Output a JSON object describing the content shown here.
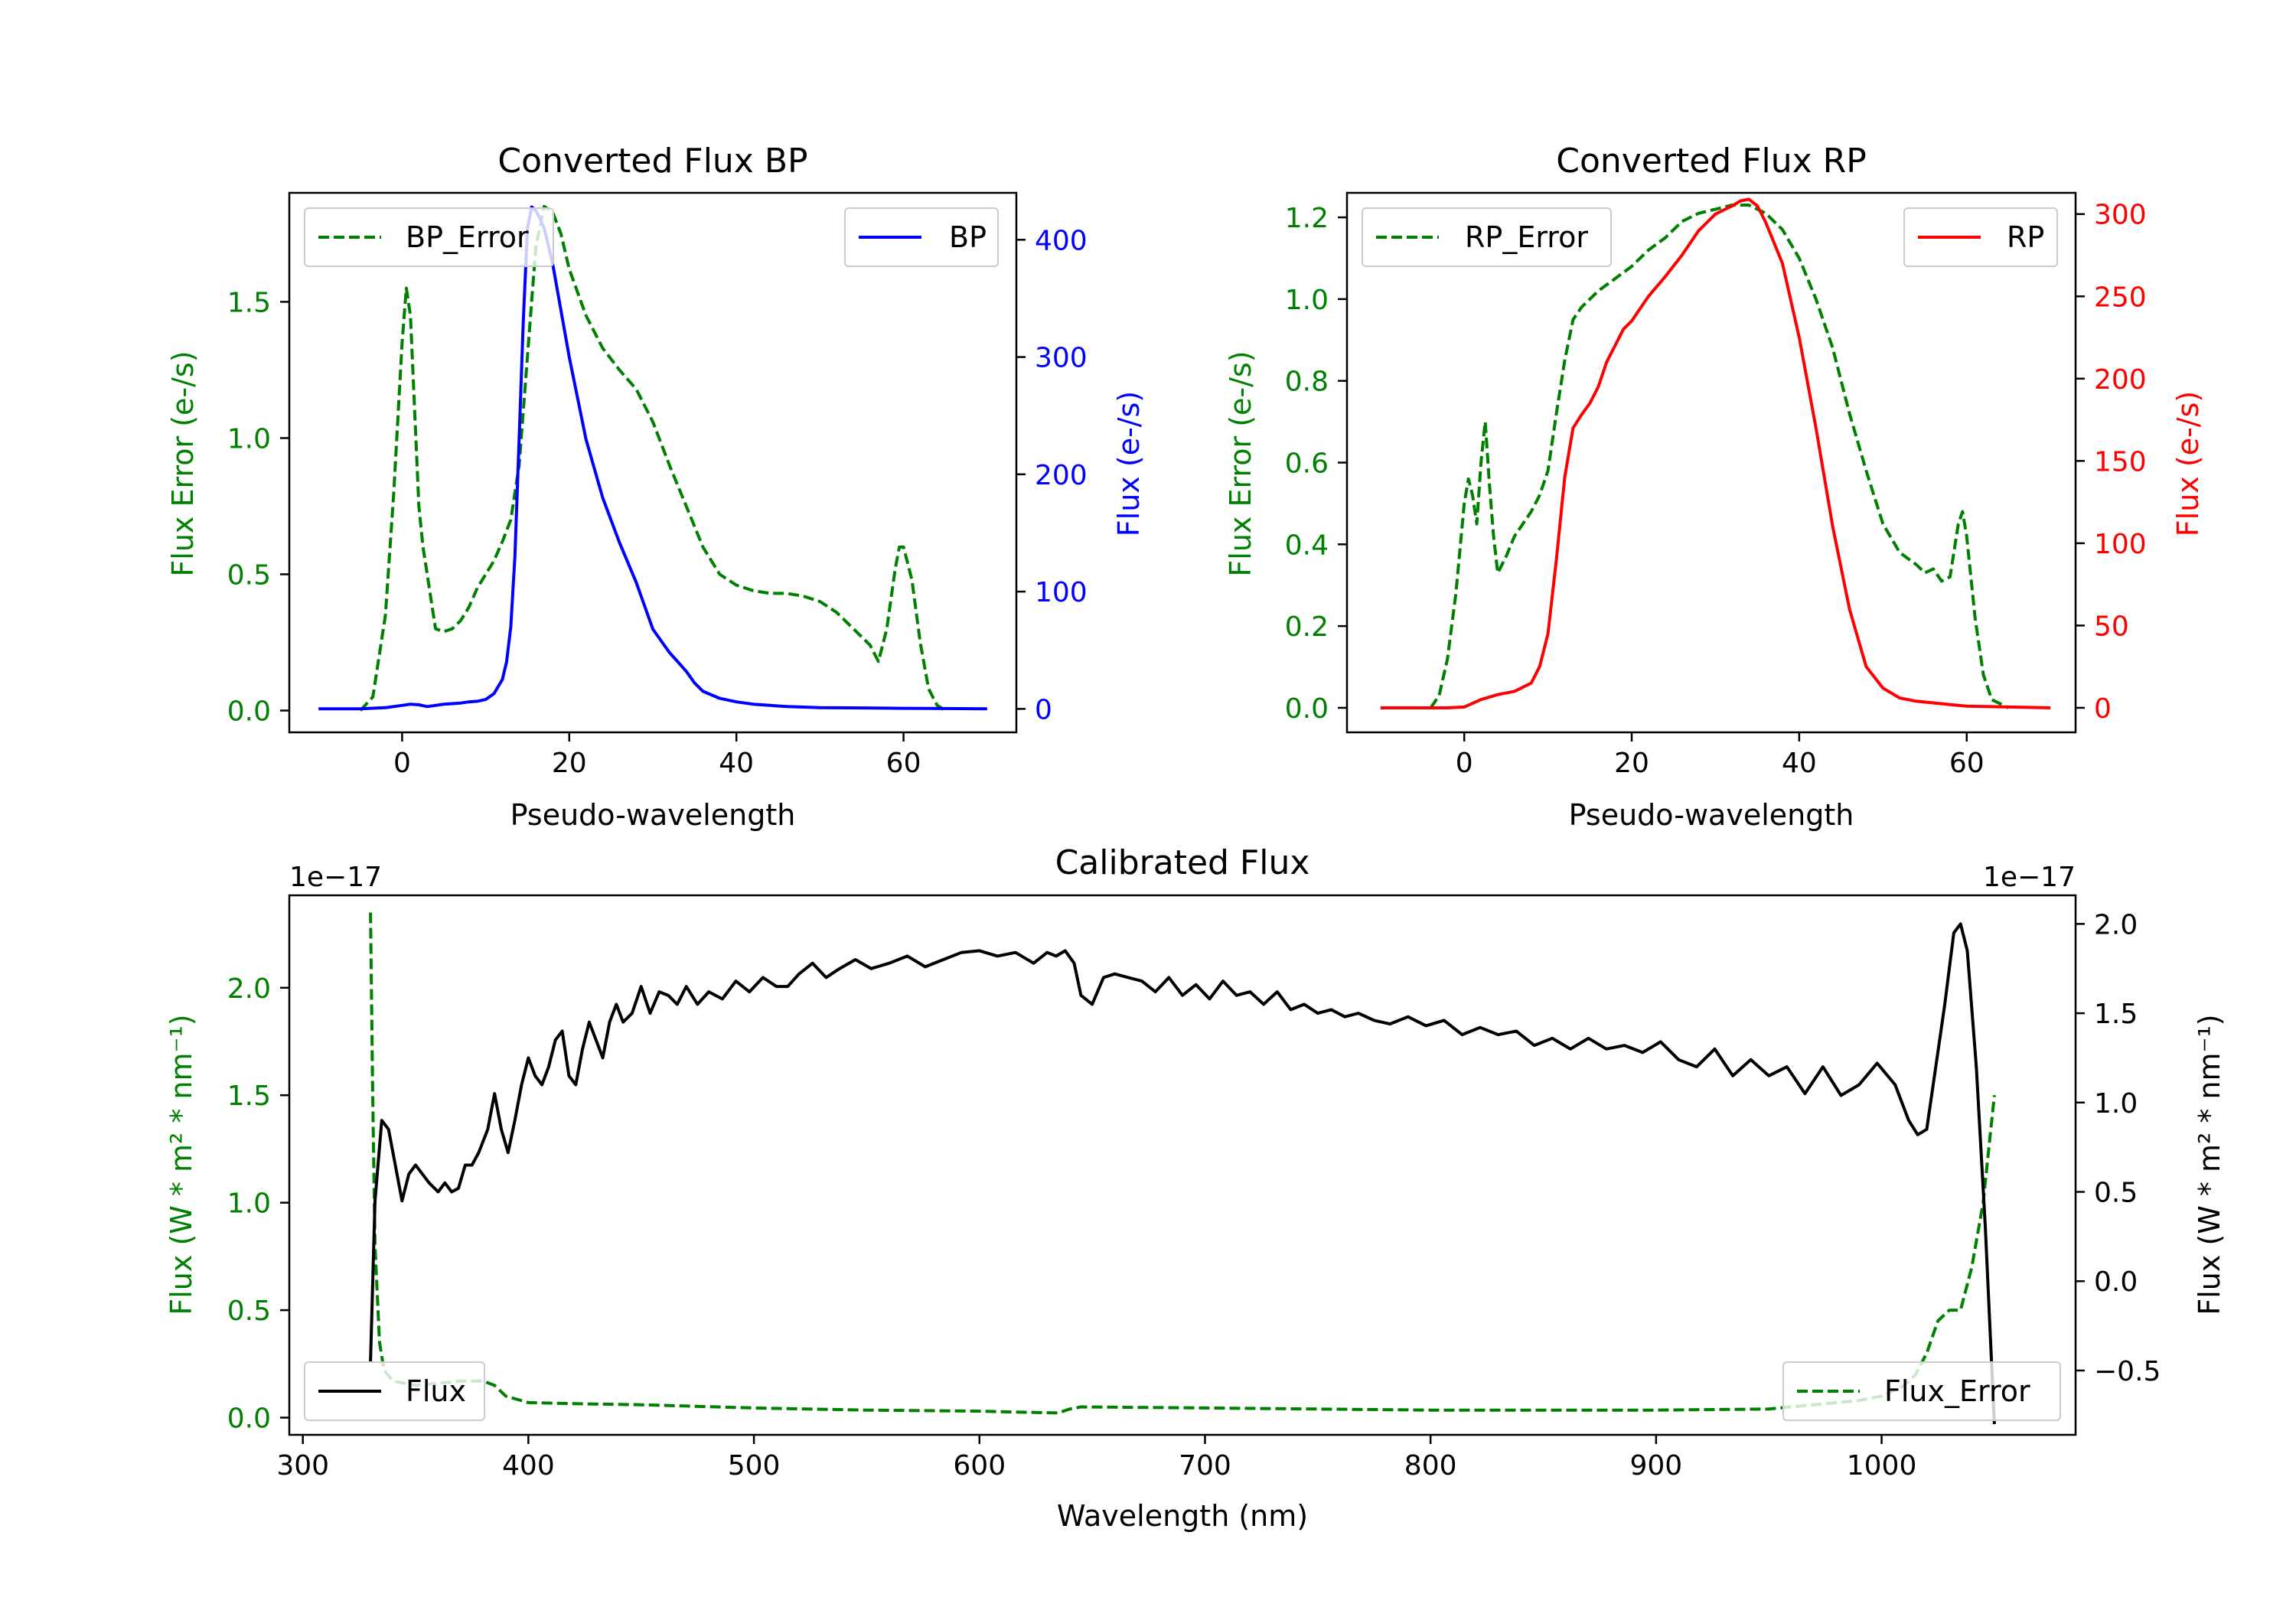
{
  "colors": {
    "green": "#008000",
    "blue": "#0000ff",
    "red": "#ff0000",
    "black": "#000000"
  },
  "chart_data": [
    {
      "id": "bp",
      "type": "line",
      "title": "Converted Flux BP",
      "xlabel": "Pseudo-wavelength",
      "ylabel_left": "Flux Error (e-/s)",
      "ylabel_right": "Flux (e-/s)",
      "xlim": [
        -13.5,
        73.5
      ],
      "ylim_left": [
        -0.08,
        1.9
      ],
      "ylim_right": [
        -20,
        440
      ],
      "xticks": [
        "0",
        "20",
        "40",
        "60"
      ],
      "yticks_left": [
        "0.0",
        "0.5",
        "1.0",
        "1.5"
      ],
      "yticks_right": [
        "0",
        "100",
        "200",
        "300",
        "400"
      ],
      "legend_left": "BP_Error",
      "legend_right": "BP",
      "series": [
        {
          "name": "BP_Error",
          "axis": "left",
          "style": "dashed",
          "color": "green",
          "x": [
            -5,
            -3.5,
            -2,
            -1,
            0,
            0.5,
            1,
            1.5,
            2,
            2.5,
            3,
            3.5,
            4,
            5,
            6,
            7,
            8,
            9,
            10,
            11,
            12,
            13,
            14,
            15,
            16,
            17,
            18,
            19,
            20,
            22,
            24,
            26,
            28,
            30,
            32,
            34,
            36,
            38,
            40,
            42,
            44,
            46,
            48,
            50,
            52,
            54,
            56,
            57,
            58,
            59,
            59.5,
            60,
            61,
            62,
            63,
            64,
            65
          ],
          "y": [
            0,
            0.05,
            0.35,
            0.8,
            1.35,
            1.55,
            1.45,
            1.1,
            0.75,
            0.6,
            0.5,
            0.4,
            0.3,
            0.29,
            0.3,
            0.33,
            0.38,
            0.45,
            0.5,
            0.55,
            0.62,
            0.7,
            0.9,
            1.3,
            1.7,
            1.85,
            1.83,
            1.75,
            1.62,
            1.45,
            1.33,
            1.25,
            1.18,
            1.06,
            0.9,
            0.75,
            0.6,
            0.5,
            0.46,
            0.44,
            0.43,
            0.43,
            0.42,
            0.4,
            0.36,
            0.3,
            0.24,
            0.18,
            0.3,
            0.52,
            0.6,
            0.6,
            0.48,
            0.25,
            0.08,
            0.02,
            0
          ]
        },
        {
          "name": "BP",
          "axis": "right",
          "style": "solid",
          "color": "blue",
          "x": [
            -10,
            -5,
            -2,
            0,
            1,
            2,
            3,
            4,
            5,
            6,
            7,
            8,
            9,
            10,
            11,
            12,
            12.5,
            13,
            13.5,
            14,
            14.5,
            15,
            15.5,
            16,
            16.5,
            17,
            18,
            19,
            20,
            22,
            24,
            26,
            28,
            30,
            31,
            32,
            33,
            34,
            35,
            36,
            38,
            40,
            42,
            44,
            46,
            48,
            50,
            55,
            60,
            65,
            70
          ],
          "y": [
            0,
            0,
            1,
            3,
            4,
            3.5,
            2,
            3,
            4,
            4.5,
            5,
            6,
            6.5,
            8,
            13,
            25,
            40,
            70,
            130,
            230,
            330,
            410,
            428,
            425,
            418,
            410,
            380,
            340,
            300,
            230,
            180,
            142,
            108,
            68,
            58,
            48,
            40,
            32,
            22,
            15,
            9,
            6,
            4,
            3,
            2,
            1.5,
            1,
            0.8,
            0.5,
            0.3,
            0
          ]
        }
      ]
    },
    {
      "id": "rp",
      "type": "line",
      "title": "Converted Flux RP",
      "xlabel": "Pseudo-wavelength",
      "ylabel_left": "Flux Error (e-/s)",
      "ylabel_right": "Flux (e-/s)",
      "xlim": [
        -14,
        73
      ],
      "ylim_left": [
        -0.06,
        1.26
      ],
      "ylim_right": [
        -14.9,
        312.9
      ],
      "xticks": [
        "0",
        "20",
        "40",
        "60"
      ],
      "yticks_left": [
        "0.0",
        "0.2",
        "0.4",
        "0.6",
        "0.8",
        "1.0",
        "1.2"
      ],
      "yticks_right": [
        "0",
        "50",
        "100",
        "150",
        "200",
        "250",
        "300"
      ],
      "legend_left": "RP_Error",
      "legend_right": "RP",
      "series": [
        {
          "name": "RP_Error",
          "axis": "left",
          "style": "dashed",
          "color": "green",
          "x": [
            -4,
            -3,
            -2,
            -1,
            0,
            0.5,
            1,
            1.5,
            2,
            2.5,
            3,
            3.5,
            4,
            5,
            6,
            7,
            8,
            9,
            10,
            11,
            12,
            13,
            14,
            16,
            18,
            20,
            22,
            24,
            26,
            28,
            30,
            32,
            34,
            36,
            38,
            40,
            42,
            44,
            46,
            48,
            50,
            52,
            54,
            55,
            56,
            57,
            58,
            59,
            59.5,
            60,
            61,
            62,
            63,
            65
          ],
          "y": [
            0,
            0.03,
            0.12,
            0.28,
            0.5,
            0.56,
            0.52,
            0.45,
            0.6,
            0.7,
            0.55,
            0.42,
            0.33,
            0.37,
            0.42,
            0.45,
            0.48,
            0.52,
            0.58,
            0.72,
            0.85,
            0.95,
            0.98,
            1.02,
            1.05,
            1.08,
            1.12,
            1.15,
            1.19,
            1.21,
            1.22,
            1.23,
            1.23,
            1.21,
            1.17,
            1.1,
            1.0,
            0.88,
            0.72,
            0.58,
            0.45,
            0.38,
            0.35,
            0.33,
            0.34,
            0.31,
            0.32,
            0.45,
            0.48,
            0.42,
            0.22,
            0.08,
            0.02,
            0
          ]
        },
        {
          "name": "RP",
          "axis": "right",
          "style": "solid",
          "color": "red",
          "x": [
            -10,
            -5,
            -2,
            0,
            2,
            4,
            6,
            8,
            9,
            10,
            11,
            12,
            13,
            14,
            15,
            16,
            17,
            18,
            19,
            20,
            22,
            24,
            26,
            28,
            30,
            32,
            33,
            34,
            35,
            36,
            38,
            40,
            42,
            44,
            46,
            48,
            50,
            52,
            54,
            56,
            58,
            60,
            65,
            70
          ],
          "y": [
            0,
            0,
            0,
            0.5,
            5,
            8,
            10,
            15,
            25,
            45,
            90,
            140,
            170,
            178,
            185,
            195,
            210,
            220,
            230,
            235,
            250,
            262,
            275,
            290,
            300,
            305,
            308,
            309,
            305,
            295,
            270,
            225,
            170,
            110,
            60,
            25,
            12,
            6,
            4,
            3,
            2,
            1,
            0.5,
            0
          ]
        }
      ]
    },
    {
      "id": "cal",
      "type": "line",
      "title": "Calibrated Flux",
      "xlabel": "Wavelength (nm)",
      "ylabel_left": "Flux (W * m² * nm⁻¹)",
      "ylabel_right": "Flux (W * m² * nm⁻¹)",
      "offset_left": "1e−17",
      "offset_right": "1e−17",
      "xlim": [
        294,
        1086
      ],
      "ylim_left": [
        -0.08,
        2.43
      ],
      "ylim_right": [
        -0.86,
        2.16
      ],
      "xticks": [
        "300",
        "400",
        "500",
        "600",
        "700",
        "800",
        "900",
        "1000"
      ],
      "yticks_left": [
        "0.0",
        "0.5",
        "1.0",
        "1.5",
        "2.0"
      ],
      "yticks_right": [
        "−0.5",
        "0.0",
        "0.5",
        "1.0",
        "1.5",
        "2.0"
      ],
      "legend_left": "Flux",
      "legend_right": "Flux_Error",
      "series": [
        {
          "name": "Flux_Error",
          "axis": "left",
          "style": "dashed",
          "color": "green",
          "x": [
            330,
            331,
            332,
            334,
            336,
            340,
            350,
            360,
            370,
            380,
            385,
            390,
            400,
            420,
            450,
            500,
            550,
            600,
            620,
            635,
            640,
            645,
            700,
            800,
            900,
            950,
            990,
            1000,
            1010,
            1015,
            1020,
            1025,
            1030,
            1035,
            1040,
            1045,
            1050
          ],
          "y": [
            2.35,
            1.5,
            0.8,
            0.35,
            0.22,
            0.17,
            0.15,
            0.16,
            0.17,
            0.17,
            0.15,
            0.1,
            0.07,
            0.065,
            0.06,
            0.045,
            0.035,
            0.03,
            0.025,
            0.022,
            0.04,
            0.05,
            0.045,
            0.035,
            0.035,
            0.04,
            0.08,
            0.1,
            0.15,
            0.2,
            0.3,
            0.45,
            0.5,
            0.5,
            0.7,
            1.0,
            1.5
          ]
        },
        {
          "name": "Flux",
          "axis": "right",
          "style": "solid",
          "color": "black",
          "x": [
            330,
            332,
            335,
            338,
            341,
            344,
            347,
            350,
            353,
            356,
            360,
            363,
            366,
            369,
            372,
            375,
            378,
            382,
            385,
            388,
            391,
            394,
            397,
            400,
            403,
            406,
            409,
            412,
            415,
            418,
            421,
            424,
            427,
            430,
            433,
            436,
            439,
            442,
            446,
            450,
            454,
            458,
            462,
            466,
            470,
            475,
            480,
            486,
            492,
            498,
            504,
            510,
            515,
            520,
            526,
            532,
            538,
            545,
            552,
            560,
            568,
            576,
            584,
            592,
            600,
            608,
            616,
            624,
            630,
            634,
            638,
            642,
            645,
            650,
            655,
            660,
            666,
            672,
            678,
            684,
            690,
            696,
            702,
            708,
            714,
            720,
            726,
            732,
            738,
            744,
            750,
            756,
            762,
            768,
            775,
            782,
            790,
            798,
            806,
            814,
            822,
            830,
            838,
            846,
            854,
            862,
            870,
            878,
            886,
            894,
            902,
            910,
            918,
            926,
            934,
            942,
            950,
            958,
            966,
            974,
            982,
            990,
            998,
            1006,
            1012,
            1016,
            1020,
            1024,
            1028,
            1032,
            1035,
            1038,
            1042,
            1046,
            1050
          ],
          "y": [
            -0.45,
            0.45,
            0.9,
            0.85,
            0.65,
            0.45,
            0.6,
            0.65,
            0.6,
            0.55,
            0.5,
            0.55,
            0.5,
            0.52,
            0.65,
            0.65,
            0.72,
            0.85,
            1.05,
            0.85,
            0.72,
            0.9,
            1.1,
            1.25,
            1.15,
            1.1,
            1.2,
            1.35,
            1.4,
            1.15,
            1.1,
            1.3,
            1.45,
            1.35,
            1.25,
            1.45,
            1.55,
            1.45,
            1.5,
            1.65,
            1.5,
            1.62,
            1.6,
            1.55,
            1.65,
            1.55,
            1.62,
            1.58,
            1.68,
            1.62,
            1.7,
            1.65,
            1.65,
            1.72,
            1.78,
            1.7,
            1.75,
            1.8,
            1.75,
            1.78,
            1.82,
            1.76,
            1.8,
            1.84,
            1.85,
            1.82,
            1.84,
            1.78,
            1.84,
            1.82,
            1.85,
            1.78,
            1.6,
            1.55,
            1.7,
            1.72,
            1.7,
            1.68,
            1.62,
            1.7,
            1.6,
            1.66,
            1.58,
            1.68,
            1.6,
            1.62,
            1.55,
            1.62,
            1.52,
            1.55,
            1.5,
            1.52,
            1.48,
            1.5,
            1.46,
            1.44,
            1.48,
            1.43,
            1.46,
            1.38,
            1.42,
            1.38,
            1.4,
            1.32,
            1.36,
            1.3,
            1.36,
            1.3,
            1.32,
            1.28,
            1.34,
            1.24,
            1.2,
            1.3,
            1.15,
            1.24,
            1.15,
            1.2,
            1.05,
            1.2,
            1.04,
            1.1,
            1.22,
            1.1,
            0.9,
            0.82,
            0.85,
            1.2,
            1.55,
            1.95,
            2.0,
            1.85,
            1.2,
            0.3,
            -0.8
          ]
        }
      ]
    }
  ]
}
